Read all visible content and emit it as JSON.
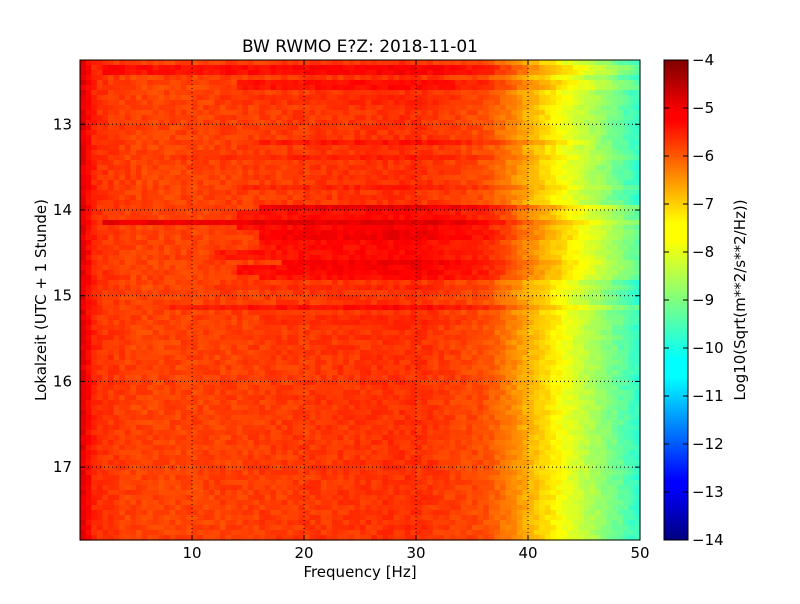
{
  "chart_data": {
    "type": "heatmap",
    "title": "BW RWMO E?Z: 2018-11-01",
    "xlabel": "Frequency [Hz]",
    "ylabel": "Lokalzeit (UTC + 1 Stunde)",
    "xlim": [
      0,
      50
    ],
    "ylim": [
      12.25,
      17.85
    ],
    "y_inverted": true,
    "x_ticks": [
      10,
      20,
      30,
      40,
      50
    ],
    "x_tick_labels": [
      "10",
      "20",
      "30",
      "40",
      "50"
    ],
    "y_ticks": [
      13,
      14,
      15,
      16,
      17
    ],
    "y_tick_labels": [
      "13",
      "14",
      "15",
      "16",
      "17"
    ],
    "grid": true,
    "colormap": "jet",
    "colorbar": {
      "label": "Log10(Sqrt(m**2/s**2/Hz))",
      "range": [
        -14,
        -4
      ],
      "ticks": [
        -4,
        -5,
        -6,
        -7,
        -8,
        -9,
        -10,
        -11,
        -12,
        -13,
        -14
      ],
      "tick_labels": [
        "−4",
        "−5",
        "−6",
        "−7",
        "−8",
        "−9",
        "−10",
        "−11",
        "−12",
        "−13",
        "−14"
      ]
    },
    "spectrum_profile": {
      "frequency_hz": [
        0,
        0.5,
        1.5,
        5,
        10,
        20,
        30,
        36,
        38,
        40,
        42,
        44,
        46,
        48,
        50
      ],
      "level": [
        -4.8,
        -5.2,
        -5.7,
        -5.9,
        -5.9,
        -5.8,
        -5.7,
        -6.0,
        -6.4,
        -7.0,
        -7.5,
        -8.1,
        -8.6,
        -9.2,
        -9.8
      ]
    },
    "bands": [
      {
        "time": 12.38,
        "level": -5.2,
        "fmin": 2,
        "fmax": 50
      },
      {
        "time": 12.55,
        "level": -5.3,
        "fmin": 14,
        "fmax": 50
      },
      {
        "time": 12.72,
        "level": -5.6,
        "fmin": 12,
        "fmax": 50
      },
      {
        "time": 13.2,
        "level": -5.4,
        "fmin": 16,
        "fmax": 46
      },
      {
        "time": 13.38,
        "level": -5.5,
        "fmin": 8,
        "fmax": 50
      },
      {
        "time": 13.75,
        "level": -5.5,
        "fmin": 14,
        "fmax": 50
      },
      {
        "time": 13.98,
        "level": -5.0,
        "fmin": 16,
        "fmax": 50
      },
      {
        "time": 14.05,
        "level": -5.3,
        "fmin": 14,
        "fmax": 50
      },
      {
        "time": 14.15,
        "level": -4.9,
        "fmin": 2,
        "fmax": 50
      },
      {
        "time": 14.22,
        "level": -5.2,
        "fmin": 14,
        "fmax": 50
      },
      {
        "time": 14.3,
        "level": -5.1,
        "fmin": 16,
        "fmax": 50
      },
      {
        "time": 14.42,
        "level": -5.3,
        "fmin": 16,
        "fmax": 50
      },
      {
        "time": 14.52,
        "level": -5.3,
        "fmin": 12,
        "fmax": 50
      },
      {
        "time": 14.62,
        "level": -5.1,
        "fmin": 18,
        "fmax": 50
      },
      {
        "time": 14.7,
        "level": -5.2,
        "fmin": 14,
        "fmax": 50
      },
      {
        "time": 14.78,
        "level": -5.3,
        "fmin": 16,
        "fmax": 50
      },
      {
        "time": 14.9,
        "level": -5.6,
        "fmin": 12,
        "fmax": 50
      },
      {
        "time": 15.15,
        "level": -5.3,
        "fmin": 8,
        "fmax": 50
      },
      {
        "time": 15.28,
        "level": -5.6,
        "fmin": 16,
        "fmax": 50
      },
      {
        "time": 15.5,
        "level": -5.7,
        "fmin": 14,
        "fmax": 50
      },
      {
        "time": 16.2,
        "level": -5.8,
        "fmin": 8,
        "fmax": 50
      }
    ]
  }
}
